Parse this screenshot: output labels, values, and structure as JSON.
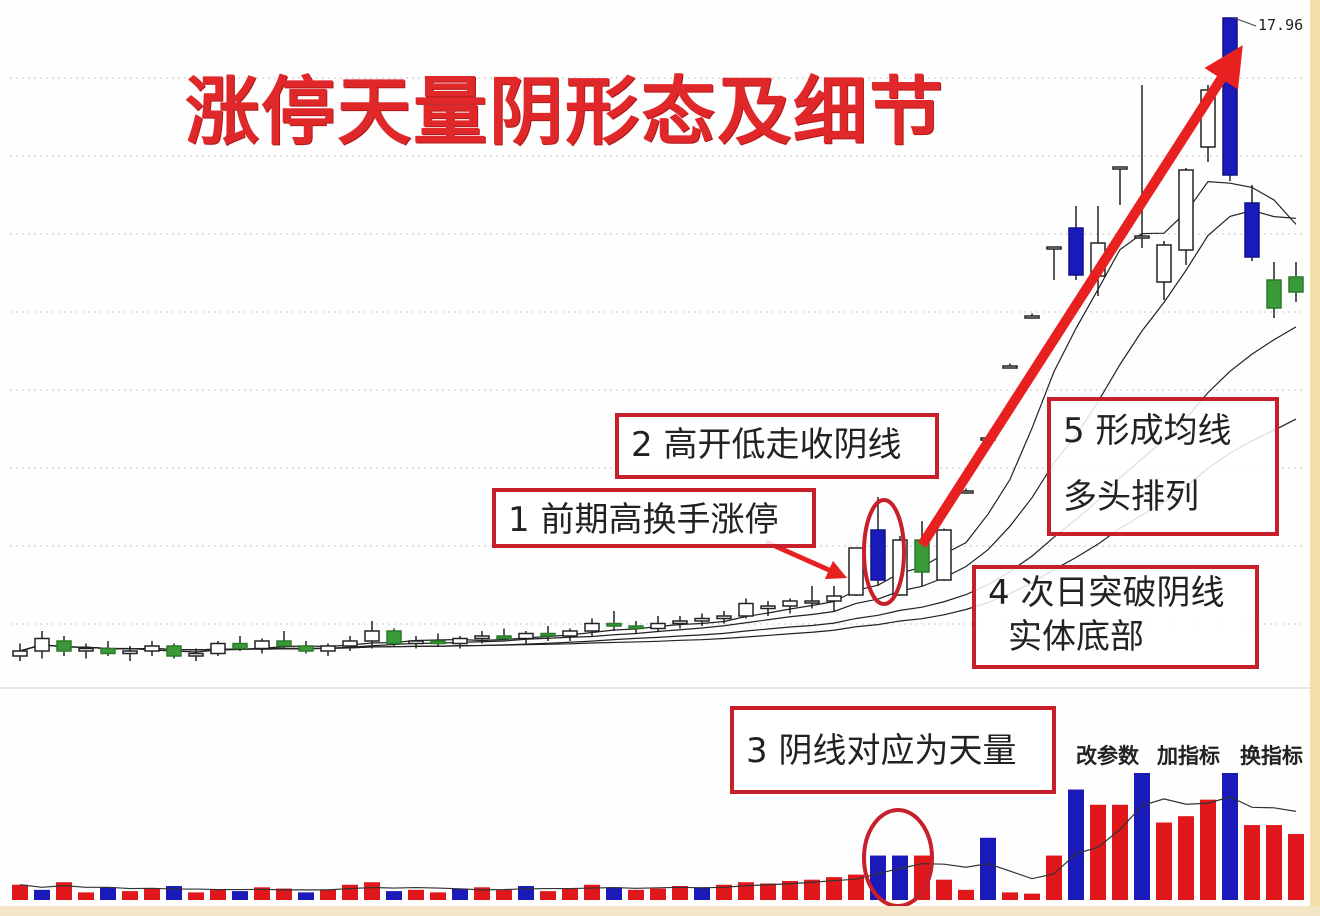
{
  "title": "涨停天量阴形态及细节",
  "annotations": {
    "note1": "1 前期高换手涨停",
    "note2": "2 高开低走收阴线",
    "note3": "3 阴线对应为天量",
    "note4_line1": "4 次日突破阴线",
    "note4_line2": "实体底部",
    "note5_line1": "5 形成均线",
    "note5_line2": "多头排列"
  },
  "toolbar": {
    "change_params": "改参数",
    "add_indicator": "加指标",
    "switch_indicator": "换指标"
  },
  "colors": {
    "up_candle": "#ffffff",
    "down_candle_limit": "#1a1ab8",
    "down_candle": "#3a9a3a",
    "volume_up": "#e0181c",
    "volume_down": "#1a1ab8",
    "annotation": "#c8202a",
    "arrow": "#e82020"
  },
  "chart_data": {
    "type": "candlestick",
    "max_price_label": "17.96",
    "moving_averages": [
      5,
      10,
      20,
      30
    ],
    "candles": [
      {
        "o": 5.2,
        "h": 5.45,
        "l": 5.1,
        "c": 5.3
      },
      {
        "o": 5.3,
        "h": 5.7,
        "l": 5.15,
        "c": 5.55
      },
      {
        "o": 5.5,
        "h": 5.6,
        "l": 5.2,
        "c": 5.3
      },
      {
        "o": 5.3,
        "h": 5.45,
        "l": 5.15,
        "c": 5.35
      },
      {
        "o": 5.35,
        "h": 5.5,
        "l": 5.2,
        "c": 5.25
      },
      {
        "o": 5.25,
        "h": 5.4,
        "l": 5.1,
        "c": 5.3
      },
      {
        "o": 5.3,
        "h": 5.5,
        "l": 5.2,
        "c": 5.4
      },
      {
        "o": 5.4,
        "h": 5.45,
        "l": 5.15,
        "c": 5.2
      },
      {
        "o": 5.2,
        "h": 5.35,
        "l": 5.1,
        "c": 5.25
      },
      {
        "o": 5.25,
        "h": 5.5,
        "l": 5.2,
        "c": 5.45
      },
      {
        "o": 5.45,
        "h": 5.6,
        "l": 5.3,
        "c": 5.35
      },
      {
        "o": 5.35,
        "h": 5.55,
        "l": 5.25,
        "c": 5.5
      },
      {
        "o": 5.5,
        "h": 5.7,
        "l": 5.35,
        "c": 5.4
      },
      {
        "o": 5.4,
        "h": 5.5,
        "l": 5.25,
        "c": 5.3
      },
      {
        "o": 5.3,
        "h": 5.45,
        "l": 5.2,
        "c": 5.4
      },
      {
        "o": 5.4,
        "h": 5.6,
        "l": 5.3,
        "c": 5.5
      },
      {
        "o": 5.5,
        "h": 5.9,
        "l": 5.35,
        "c": 5.7
      },
      {
        "o": 5.7,
        "h": 5.75,
        "l": 5.4,
        "c": 5.45
      },
      {
        "o": 5.45,
        "h": 5.6,
        "l": 5.35,
        "c": 5.5
      },
      {
        "o": 5.5,
        "h": 5.65,
        "l": 5.4,
        "c": 5.45
      },
      {
        "o": 5.45,
        "h": 5.6,
        "l": 5.35,
        "c": 5.55
      },
      {
        "o": 5.55,
        "h": 5.7,
        "l": 5.45,
        "c": 5.6
      },
      {
        "o": 5.6,
        "h": 5.75,
        "l": 5.5,
        "c": 5.55
      },
      {
        "o": 5.55,
        "h": 5.7,
        "l": 5.45,
        "c": 5.65
      },
      {
        "o": 5.65,
        "h": 5.8,
        "l": 5.5,
        "c": 5.6
      },
      {
        "o": 5.6,
        "h": 5.75,
        "l": 5.5,
        "c": 5.7
      },
      {
        "o": 5.7,
        "h": 5.95,
        "l": 5.6,
        "c": 5.85
      },
      {
        "o": 5.85,
        "h": 6.1,
        "l": 5.7,
        "c": 5.8
      },
      {
        "o": 5.8,
        "h": 5.9,
        "l": 5.65,
        "c": 5.75
      },
      {
        "o": 5.75,
        "h": 6.0,
        "l": 5.7,
        "c": 5.85
      },
      {
        "o": 5.85,
        "h": 6.0,
        "l": 5.75,
        "c": 5.9
      },
      {
        "o": 5.9,
        "h": 6.05,
        "l": 5.8,
        "c": 5.95
      },
      {
        "o": 5.95,
        "h": 6.1,
        "l": 5.85,
        "c": 6.0
      },
      {
        "o": 6.0,
        "h": 6.35,
        "l": 5.95,
        "c": 6.25
      },
      {
        "o": 6.15,
        "h": 6.3,
        "l": 6.0,
        "c": 6.2
      },
      {
        "o": 6.2,
        "h": 6.35,
        "l": 6.05,
        "c": 6.3
      },
      {
        "o": 6.3,
        "h": 6.6,
        "l": 6.15,
        "c": 6.3
      },
      {
        "o": 6.3,
        "h": 6.6,
        "l": 6.1,
        "c": 6.4
      },
      {
        "o": 6.42,
        "h": 7.36,
        "l": 6.4,
        "c": 7.36
      },
      {
        "o": 7.72,
        "h": 8.38,
        "l": 6.6,
        "c": 6.72
      },
      {
        "o": 6.42,
        "h": 7.6,
        "l": 6.4,
        "c": 7.52
      },
      {
        "o": 7.52,
        "h": 7.9,
        "l": 6.6,
        "c": 6.88
      },
      {
        "o": 6.72,
        "h": 7.75,
        "l": 6.7,
        "c": 7.72
      },
      {
        "o": 8.5,
        "h": 8.55,
        "l": 8.45,
        "c": 8.5
      },
      {
        "o": 9.56,
        "h": 9.62,
        "l": 9.5,
        "c": 9.56
      },
      {
        "o": 11.0,
        "h": 11.05,
        "l": 10.95,
        "c": 11.0
      },
      {
        "o": 12.0,
        "h": 12.05,
        "l": 11.95,
        "c": 12.0
      },
      {
        "o": 13.38,
        "h": 13.38,
        "l": 12.72,
        "c": 13.38
      },
      {
        "o": 13.76,
        "h": 14.2,
        "l": 12.72,
        "c": 12.82
      },
      {
        "o": 12.8,
        "h": 14.2,
        "l": 12.4,
        "c": 13.46
      },
      {
        "o": 14.98,
        "h": 14.98,
        "l": 14.22,
        "c": 14.98
      },
      {
        "o": 13.56,
        "h": 16.62,
        "l": 13.36,
        "c": 13.6
      },
      {
        "o": 12.68,
        "h": 13.5,
        "l": 12.32,
        "c": 13.42
      },
      {
        "o": 13.32,
        "h": 14.96,
        "l": 13.02,
        "c": 14.92
      },
      {
        "o": 15.38,
        "h": 16.62,
        "l": 15.08,
        "c": 16.52
      },
      {
        "o": 17.96,
        "h": 17.96,
        "l": 14.7,
        "c": 14.82
      },
      {
        "o": 14.26,
        "h": 14.62,
        "l": 13.1,
        "c": 13.18
      },
      {
        "o": 12.72,
        "h": 13.08,
        "l": 11.96,
        "c": 12.16
      },
      {
        "o": 12.78,
        "h": 13.08,
        "l": 12.28,
        "c": 12.48
      }
    ],
    "volume": [
      12,
      8,
      14,
      6,
      10,
      7,
      9,
      11,
      6,
      8,
      7,
      10,
      9,
      6,
      8,
      12,
      14,
      7,
      8,
      6,
      9,
      10,
      8,
      11,
      7,
      9,
      12,
      10,
      8,
      9,
      11,
      10,
      12,
      14,
      13,
      15,
      16,
      18,
      20,
      35,
      35,
      35,
      16,
      8,
      49,
      6,
      5,
      35,
      87,
      75,
      75,
      100,
      61,
      66,
      79,
      100,
      59,
      59,
      52
    ],
    "volume_colors": [
      "up",
      "down",
      "up",
      "up",
      "down",
      "up",
      "up",
      "down",
      "up",
      "up",
      "down",
      "up",
      "up",
      "down",
      "up",
      "up",
      "up",
      "down",
      "up",
      "up",
      "down",
      "up",
      "up",
      "down",
      "up",
      "up",
      "up",
      "down",
      "up",
      "up",
      "up",
      "down",
      "up",
      "up",
      "up",
      "up",
      "up",
      "up",
      "up",
      "down",
      "down",
      "up",
      "up",
      "up",
      "down",
      "up",
      "up",
      "up",
      "down",
      "up",
      "up",
      "down",
      "up",
      "up",
      "up",
      "down",
      "up",
      "up",
      "up"
    ]
  }
}
